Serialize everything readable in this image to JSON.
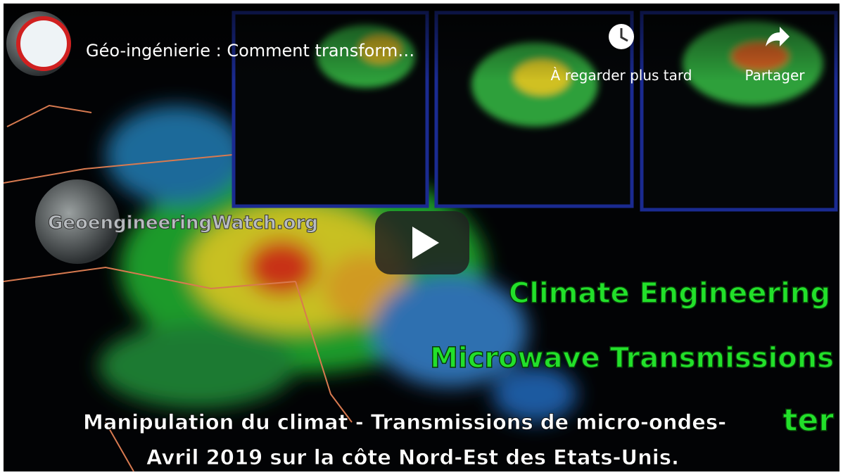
{
  "header": {
    "title": "Géo-ingénierie : Comment transform…"
  },
  "actions": [
    {
      "label": "À regarder plus tard"
    },
    {
      "label": "Partager"
    }
  ],
  "video": {
    "watermark": "GeoengineeringWatch.org",
    "headline": [
      "Climate Engineering",
      "Microwave Transmissions"
    ],
    "caption": [
      "Manipulation du climat - Transmissions de micro-ondes-",
      "ter",
      "Avril 2019 sur la côte Nord-Est des Etats-Unis."
    ]
  }
}
